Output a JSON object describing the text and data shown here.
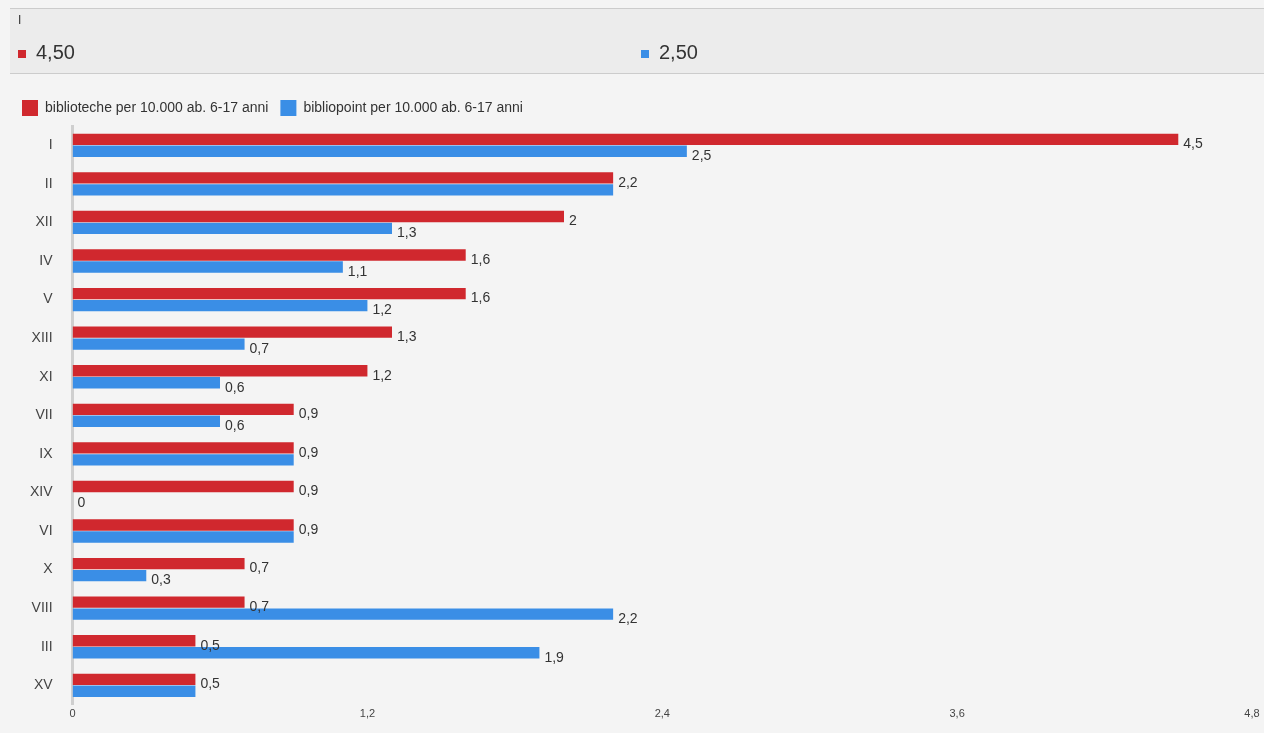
{
  "chart_data": {
    "type": "bar",
    "orientation": "horizontal",
    "categories": [
      "I",
      "II",
      "XII",
      "IV",
      "V",
      "XIII",
      "XI",
      "VII",
      "IX",
      "XIV",
      "VI",
      "X",
      "VIII",
      "III",
      "XV"
    ],
    "series": [
      {
        "name": "biblioteche per 10.000 ab. 6-17 anni",
        "color": "#d0282e",
        "values": [
          4.5,
          2.2,
          2,
          1.6,
          1.6,
          1.3,
          1.2,
          0.9,
          0.9,
          0.9,
          0.9,
          0.7,
          0.7,
          0.5,
          0.5
        ],
        "value_labels": [
          "4,5",
          "2,2",
          "2",
          "1,6",
          "1,6",
          "1,3",
          "1,2",
          "0,9",
          "0,9",
          "0,9",
          "0,9",
          "0,7",
          "0,7",
          "0,5",
          "0,5"
        ]
      },
      {
        "name": "bibliopoint per 10.000 ab. 6-17 anni",
        "color": "#3a8ee6",
        "values": [
          2.5,
          2.2,
          1.3,
          1.1,
          1.2,
          0.7,
          0.6,
          0.6,
          0.9,
          0,
          0.9,
          0.3,
          2.2,
          1.9,
          0.5
        ],
        "value_labels": [
          "2,5",
          null,
          "1,3",
          "1,1",
          "1,2",
          "0,7",
          "0,6",
          "0,6",
          null,
          "0",
          null,
          "0,3",
          "2,2",
          "1,9",
          null
        ]
      }
    ],
    "xlim": [
      0,
      4.8
    ],
    "xticks": [
      0,
      {
        "value": 1.2,
        "label": "1,2"
      },
      {
        "value": 2.4,
        "label": "2,4"
      },
      {
        "value": 3.6,
        "label": "3,6"
      },
      {
        "value": 4.8,
        "label": "4,8"
      }
    ],
    "annotations": [
      "I",
      "4,50",
      "2,50"
    ],
    "legend": "top left",
    "grid": false
  }
}
